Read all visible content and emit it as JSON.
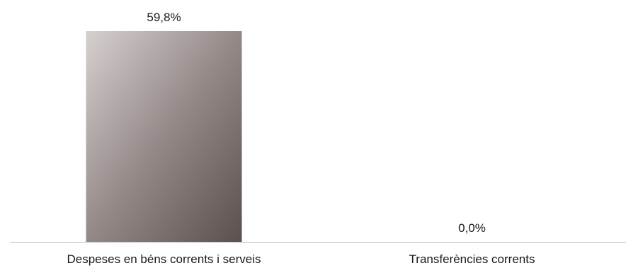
{
  "chart_data": {
    "type": "bar",
    "categories": [
      "Despeses en béns corrents i serveis",
      "Transferències corrents"
    ],
    "values": [
      59.8,
      0.0
    ],
    "value_labels": [
      "59,8%",
      "0,0%"
    ],
    "title": "",
    "xlabel": "",
    "ylabel": "",
    "ylim": [
      0,
      59.8
    ],
    "grid": false,
    "legend": "none",
    "colors": {
      "bar_light": "#d6d0cf",
      "bar_mid": "#938988",
      "bar_dark": "#5a504f",
      "axis": "#bdbdbd",
      "text": "#1a1a1a"
    }
  }
}
